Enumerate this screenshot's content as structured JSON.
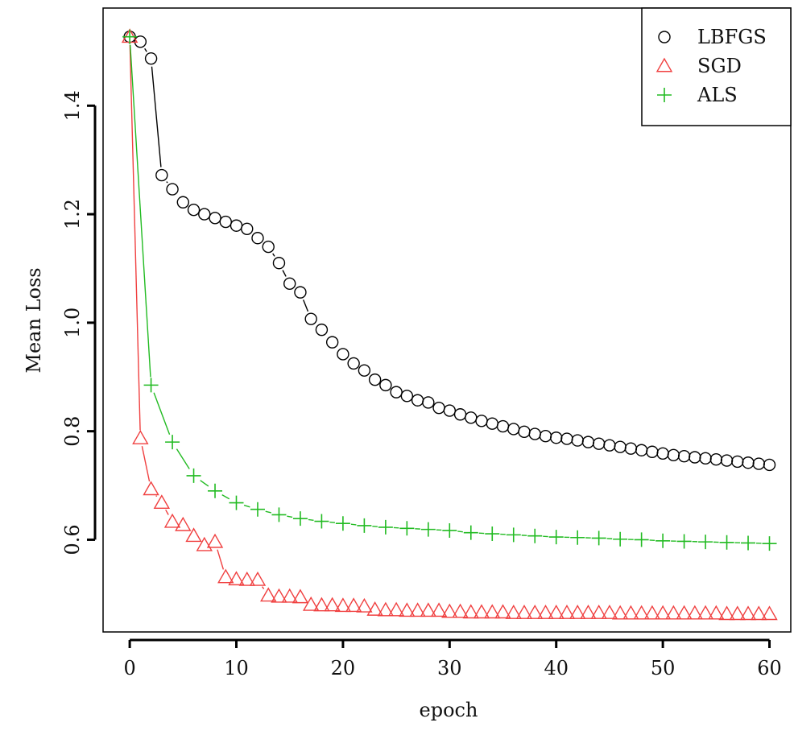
{
  "chart_data": {
    "type": "line",
    "title": "",
    "xlabel": "epoch",
    "ylabel": "Mean Loss",
    "xlim": [
      -2.5,
      62
    ],
    "ylim": [
      0.43,
      1.58
    ],
    "xticks": [
      0,
      10,
      20,
      30,
      40,
      50,
      60
    ],
    "yticks": [
      0.6,
      0.8,
      1.0,
      1.2,
      1.4
    ],
    "xtick_labels": [
      "0",
      "10",
      "20",
      "30",
      "40",
      "50",
      "60"
    ],
    "ytick_labels": [
      "0.6",
      "0.8",
      "1.0",
      "1.2",
      "1.4"
    ],
    "grid": false,
    "legend_position": "top-right",
    "series": [
      {
        "name": "LBFGS",
        "marker": "circle",
        "color": "#000000",
        "x": [
          0,
          1,
          2,
          3,
          4,
          5,
          6,
          7,
          8,
          9,
          10,
          11,
          12,
          13,
          14,
          15,
          16,
          17,
          18,
          19,
          20,
          21,
          22,
          23,
          24,
          25,
          26,
          27,
          28,
          29,
          30,
          31,
          32,
          33,
          34,
          35,
          36,
          37,
          38,
          39,
          40,
          41,
          42,
          43,
          44,
          45,
          46,
          47,
          48,
          49,
          50,
          51,
          52,
          53,
          54,
          55,
          56,
          57,
          58,
          59,
          60
        ],
        "values": [
          1.527,
          1.518,
          1.487,
          1.272,
          1.246,
          1.222,
          1.208,
          1.2,
          1.193,
          1.186,
          1.179,
          1.173,
          1.156,
          1.14,
          1.11,
          1.072,
          1.056,
          1.007,
          0.987,
          0.964,
          0.942,
          0.925,
          0.912,
          0.895,
          0.885,
          0.872,
          0.865,
          0.857,
          0.853,
          0.843,
          0.838,
          0.831,
          0.825,
          0.819,
          0.814,
          0.809,
          0.804,
          0.799,
          0.795,
          0.791,
          0.788,
          0.786,
          0.783,
          0.78,
          0.777,
          0.774,
          0.771,
          0.768,
          0.765,
          0.762,
          0.759,
          0.756,
          0.754,
          0.752,
          0.75,
          0.748,
          0.746,
          0.744,
          0.742,
          0.74,
          0.738
        ]
      },
      {
        "name": "SGD",
        "marker": "triangle",
        "color": "#f04040",
        "x": [
          0,
          1,
          2,
          3,
          4,
          5,
          6,
          7,
          8,
          9,
          10,
          11,
          12,
          13,
          14,
          15,
          16,
          17,
          18,
          19,
          20,
          21,
          22,
          23,
          24,
          25,
          26,
          27,
          28,
          29,
          30,
          31,
          32,
          33,
          34,
          35,
          36,
          37,
          38,
          39,
          40,
          41,
          42,
          43,
          44,
          45,
          46,
          47,
          48,
          49,
          50,
          51,
          52,
          53,
          54,
          55,
          56,
          57,
          58,
          59,
          60
        ],
        "values": [
          1.527,
          0.787,
          0.693,
          0.668,
          0.633,
          0.627,
          0.607,
          0.59,
          0.596,
          0.531,
          0.527,
          0.526,
          0.526,
          0.497,
          0.495,
          0.495,
          0.494,
          0.48,
          0.479,
          0.479,
          0.478,
          0.478,
          0.477,
          0.471,
          0.47,
          0.47,
          0.469,
          0.469,
          0.469,
          0.469,
          0.467,
          0.467,
          0.466,
          0.466,
          0.466,
          0.466,
          0.465,
          0.465,
          0.465,
          0.465,
          0.465,
          0.465,
          0.465,
          0.465,
          0.465,
          0.465,
          0.464,
          0.464,
          0.464,
          0.464,
          0.464,
          0.464,
          0.464,
          0.464,
          0.464,
          0.464,
          0.463,
          0.463,
          0.463,
          0.463,
          0.463
        ]
      },
      {
        "name": "ALS",
        "marker": "plus",
        "color": "#22bb22",
        "x": [
          0,
          2,
          4,
          6,
          8,
          10,
          12,
          14,
          16,
          18,
          20,
          22,
          24,
          26,
          28,
          30,
          32,
          34,
          36,
          38,
          40,
          42,
          44,
          46,
          48,
          50,
          52,
          54,
          56,
          58,
          60
        ],
        "values": [
          1.527,
          0.885,
          0.78,
          0.718,
          0.69,
          0.668,
          0.656,
          0.646,
          0.639,
          0.634,
          0.63,
          0.626,
          0.623,
          0.621,
          0.619,
          0.617,
          0.613,
          0.611,
          0.609,
          0.607,
          0.605,
          0.604,
          0.603,
          0.601,
          0.6,
          0.598,
          0.597,
          0.596,
          0.595,
          0.594,
          0.593
        ]
      }
    ]
  }
}
